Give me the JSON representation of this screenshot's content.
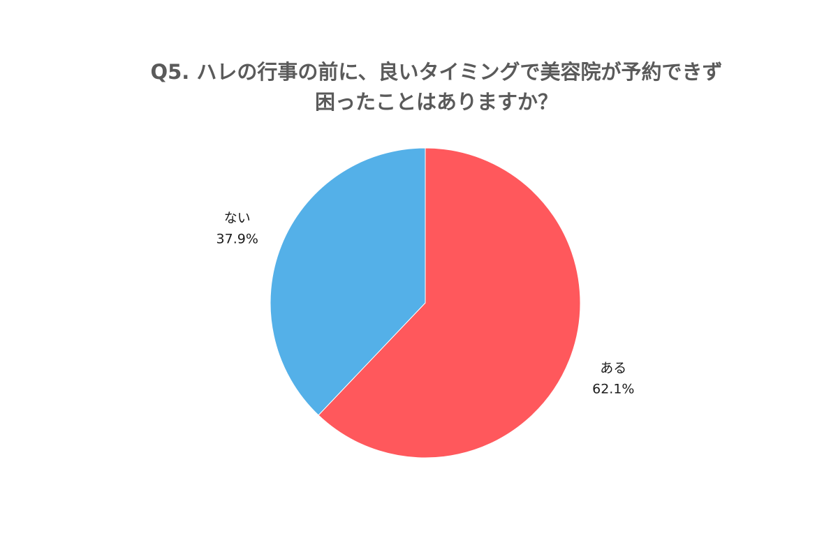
{
  "chart_data": {
    "type": "pie",
    "title_lines": [
      "Q5. ハレの行事の前に、良いタイミングで美容院が予約できず",
      "困ったことはありますか？"
    ],
    "slices": [
      {
        "label": "ある",
        "value": 62.1,
        "value_text": "62.1%",
        "color": "#FF585C"
      },
      {
        "label": "ない",
        "value": 37.9,
        "value_text": "37.9%",
        "color": "#54B0E8"
      }
    ],
    "start": "12 o'clock",
    "direction": "clockwise"
  }
}
